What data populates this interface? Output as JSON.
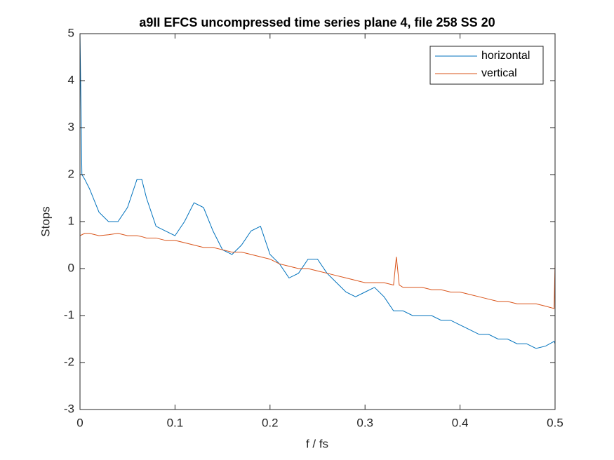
{
  "chart_data": {
    "type": "line",
    "title": "a9II EFCS uncompressed time series plane 4, file 258 SS 20",
    "xlabel": "f / fs",
    "ylabel": "Stops",
    "x": [
      0,
      0.002,
      0.005,
      0.01,
      0.02,
      0.03,
      0.04,
      0.05,
      0.06,
      0.065,
      0.07,
      0.08,
      0.09,
      0.1,
      0.11,
      0.12,
      0.13,
      0.14,
      0.15,
      0.16,
      0.17,
      0.18,
      0.19,
      0.2,
      0.21,
      0.22,
      0.23,
      0.24,
      0.25,
      0.26,
      0.27,
      0.28,
      0.29,
      0.3,
      0.31,
      0.32,
      0.33,
      0.333,
      0.336,
      0.34,
      0.35,
      0.36,
      0.37,
      0.38,
      0.39,
      0.4,
      0.41,
      0.42,
      0.43,
      0.44,
      0.45,
      0.46,
      0.47,
      0.48,
      0.49,
      0.499,
      0.5
    ],
    "series": [
      {
        "name": "horizontal",
        "color": "#0072bd",
        "values": [
          5,
          2,
          1.9,
          1.7,
          1.2,
          1,
          1,
          1.3,
          1.9,
          1.9,
          1.5,
          0.9,
          0.8,
          0.7,
          1,
          1.4,
          1.3,
          0.8,
          0.4,
          0.3,
          0.5,
          0.8,
          0.9,
          0.3,
          0.1,
          -0.2,
          -0.1,
          0.2,
          0.2,
          -0.1,
          -0.3,
          -0.5,
          -0.6,
          -0.5,
          -0.4,
          -0.6,
          -0.9,
          -0.9,
          -0.9,
          -0.9,
          -1,
          -1,
          -1,
          -1.1,
          -1.1,
          -1.2,
          -1.3,
          -1.4,
          -1.4,
          -1.5,
          -1.5,
          -1.6,
          -1.6,
          -1.7,
          -1.65,
          -1.55,
          -1.6
        ]
      },
      {
        "name": "vertical",
        "color": "#d95319",
        "values": [
          0.7,
          0.72,
          0.75,
          0.75,
          0.7,
          0.72,
          0.75,
          0.7,
          0.7,
          0.68,
          0.65,
          0.65,
          0.6,
          0.6,
          0.55,
          0.5,
          0.45,
          0.45,
          0.4,
          0.35,
          0.35,
          0.3,
          0.25,
          0.2,
          0.1,
          0.05,
          0,
          0,
          -0.05,
          -0.1,
          -0.15,
          -0.2,
          -0.25,
          -0.3,
          -0.3,
          -0.3,
          -0.35,
          0.25,
          -0.35,
          -0.4,
          -0.4,
          -0.4,
          -0.45,
          -0.45,
          -0.5,
          -0.5,
          -0.55,
          -0.6,
          -0.65,
          -0.7,
          -0.7,
          -0.75,
          -0.75,
          -0.75,
          -0.8,
          -0.85,
          0.1
        ]
      }
    ],
    "xlim": [
      0,
      0.5
    ],
    "xticks": [
      0,
      0.1,
      0.2,
      0.3,
      0.4,
      0.5
    ],
    "ylim": [
      -3,
      5
    ],
    "yticks": [
      -3,
      -2,
      -1,
      0,
      1,
      2,
      3,
      4,
      5
    ],
    "legend": "northeast"
  }
}
